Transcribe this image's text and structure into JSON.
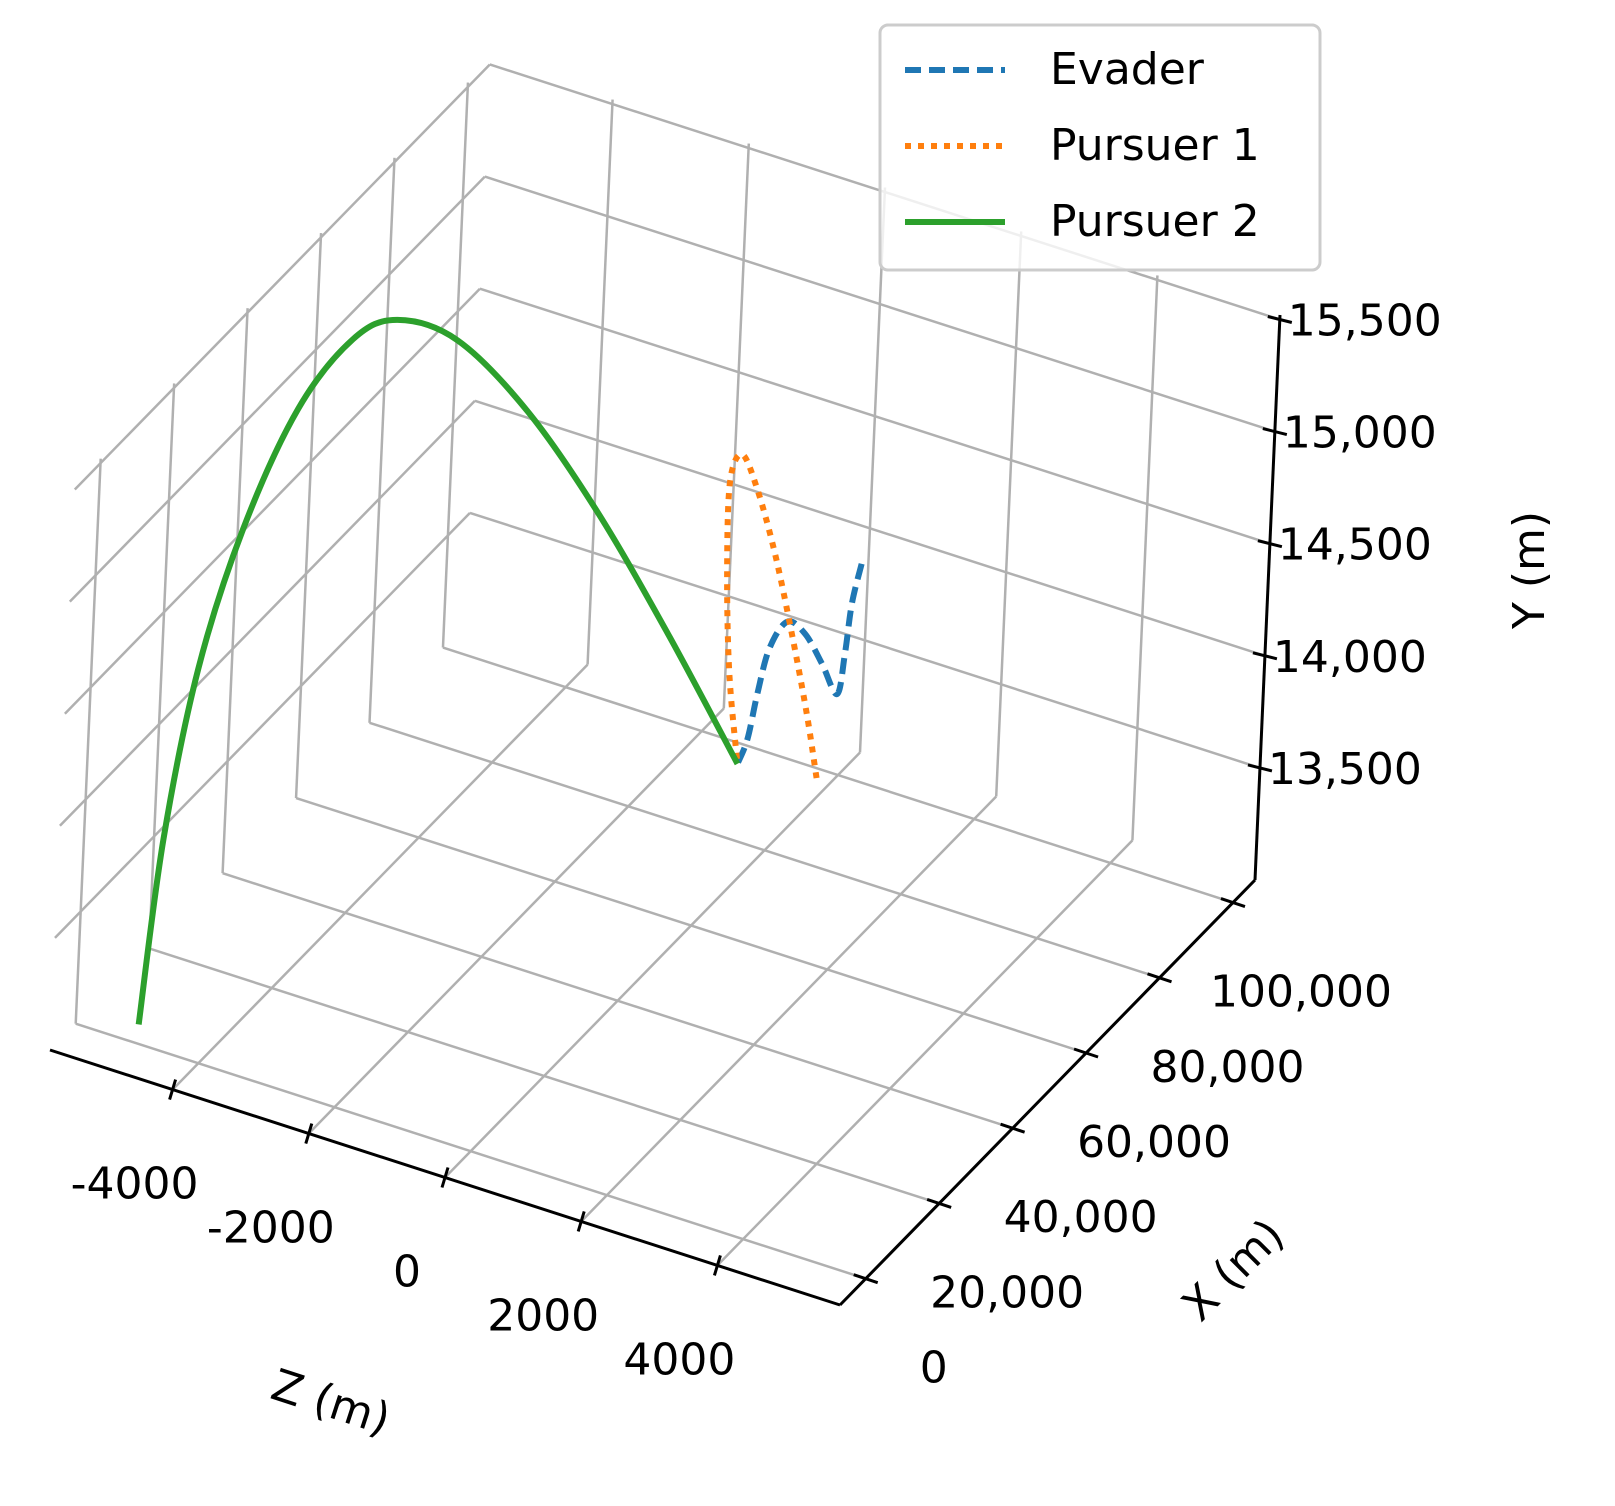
{
  "chart_data": {
    "type": "line3d",
    "xlabel": "X (m)",
    "ylabel": "Y (m)",
    "zlabel": "Z (m)",
    "xlim": [
      -7000,
      106000
    ],
    "ylim": [
      13000,
      15520
    ],
    "zlim": [
      -5800,
      5800
    ],
    "xticks": [
      0,
      {
        "value": 20000,
        "label": "20,000"
      },
      {
        "value": 40000,
        "label": "40,000"
      },
      {
        "value": 60000,
        "label": "60,000"
      },
      {
        "value": 80000,
        "label": "80,000"
      },
      {
        "value": 100000,
        "label": "100,000"
      }
    ],
    "yticks": [
      {
        "value": 13500,
        "label": "13,500"
      },
      {
        "value": 14000,
        "label": "14,000"
      },
      {
        "value": 14500,
        "label": "14,500"
      },
      {
        "value": 15000,
        "label": "15,000"
      },
      {
        "value": 15500,
        "label": "15,500"
      }
    ],
    "zticks": [
      -4000,
      -2000,
      0,
      2000,
      4000
    ],
    "grid": true,
    "legend": "upper right",
    "series": [
      {
        "name": "Evader",
        "color": "#1f77b4",
        "linestyle": "dashed",
        "x": [
          90000,
          87000,
          84000,
          81000,
          78000,
          75000,
          72000,
          69000,
          66000,
          63000,
          60000
        ],
        "y": [
          14180,
          14055,
          13891,
          13768,
          13945,
          14118,
          14211,
          14133,
          13983,
          13835,
          13777
        ],
        "z": [
          715,
          751,
          835,
          899,
          815,
          703,
          588,
          499,
          507,
          545,
          568
        ]
      },
      {
        "name": "Pursuer 1",
        "color": "#ff7f0e",
        "linestyle": "dotted",
        "x": [
          95000,
          92000,
          89000,
          86000,
          83000,
          80000,
          76000,
          72000,
          67000,
          60000
        ],
        "y": [
          13065,
          13402,
          13799,
          14193,
          14519,
          14709,
          14655,
          14341,
          14011,
          13777
        ],
        "z": [
          -54,
          -87,
          -203,
          -347,
          -497,
          -582,
          -533,
          -313,
          37,
          568
        ]
      },
      {
        "name": "Pursuer 2",
        "color": "#2ca02c",
        "linestyle": "solid",
        "x": [
          0,
          6000,
          12000,
          18000,
          25000,
          32000,
          38000,
          44000,
          49000,
          53000,
          57000,
          60000
        ],
        "y": [
          13086,
          13806,
          14473,
          15021,
          15473,
          15706,
          15725,
          15590,
          15269,
          14838,
          14318,
          13777
        ],
        "z": [
          -4888,
          -4952,
          -4862,
          -4607,
          -4246,
          -3852,
          -3520,
          -2944,
          -2140,
          -1265,
          -376,
          568
        ]
      }
    ]
  }
}
